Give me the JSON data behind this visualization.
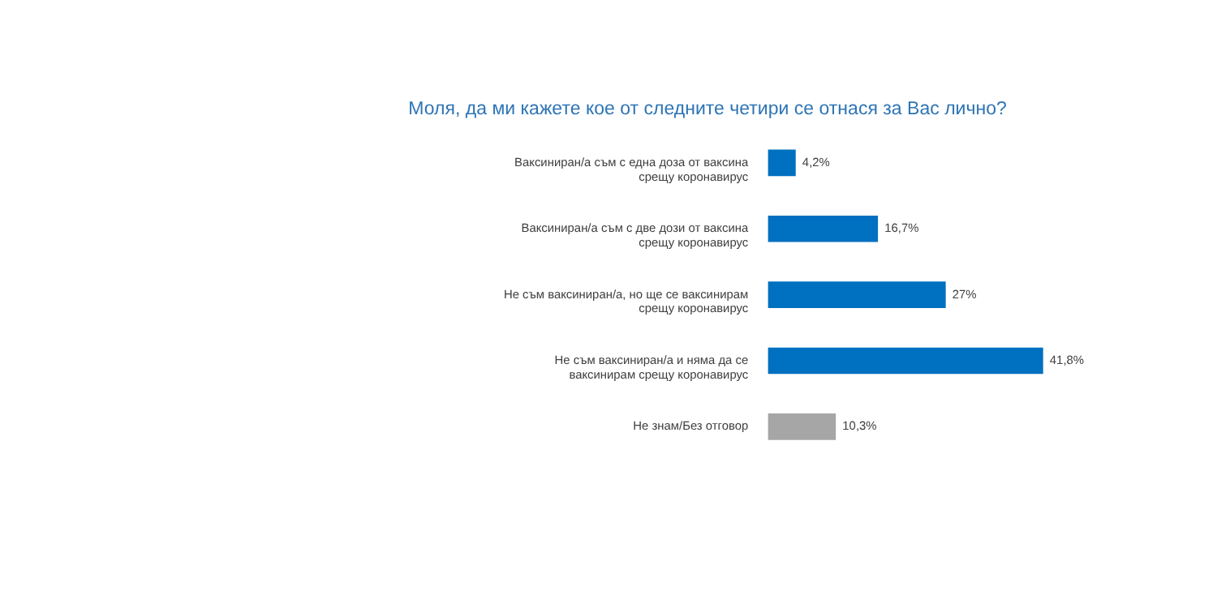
{
  "chart_data": {
    "type": "bar",
    "orientation": "horizontal",
    "title": "Моля, да ми кажете кое от следните четири се отнася за Вас лично?",
    "categories": [
      "Ваксиниран/а съм с една доза от ваксина срещу коронавирус",
      "Ваксиниран/а съм с две дози от ваксина срещу коронавирус",
      "Не съм ваксиниран/а, но ще се ваксинирам срещу коронавирус",
      "Не съм ваксиниран/а и няма да се ваксинирам срещу коронавирус",
      "Не знам/Без отговор"
    ],
    "values": [
      4.2,
      16.7,
      27,
      41.8,
      10.3
    ],
    "colors": [
      "#0070c0",
      "#0070c0",
      "#0070c0",
      "#0070c0",
      "#a6a6a6"
    ],
    "value_labels": [
      "4,2%",
      "16,7%",
      "27%",
      "41,8%",
      "10,3%"
    ]
  }
}
